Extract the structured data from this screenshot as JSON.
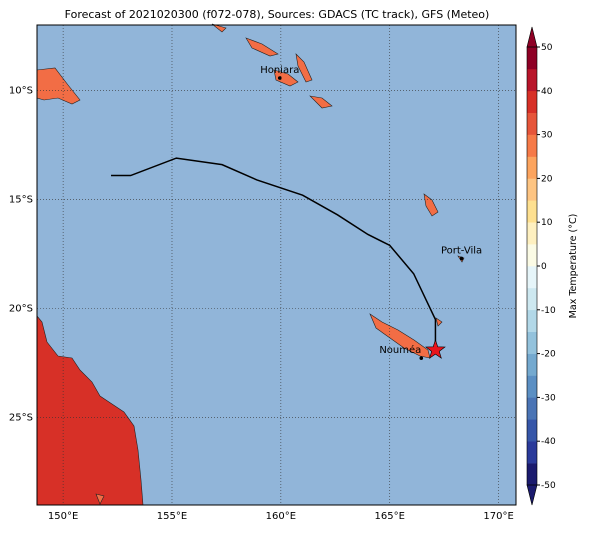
{
  "chart_data": {
    "type": "map",
    "title": "Forecast of 2021020300 (f072-078), Sources: GDACS (TC track), GFS (Meteo)",
    "xlim": [
      148.8,
      170.8
    ],
    "ylim": [
      -29,
      -7
    ],
    "xticks": [
      {
        "value": 150,
        "label": "150°E"
      },
      {
        "value": 155,
        "label": "155°E"
      },
      {
        "value": 160,
        "label": "160°E"
      },
      {
        "value": 165,
        "label": "165°E"
      },
      {
        "value": 170,
        "label": "170°E"
      }
    ],
    "yticks": [
      {
        "value": -10,
        "label": "10°S"
      },
      {
        "value": -15,
        "label": "15°S"
      },
      {
        "value": -20,
        "label": "20°S"
      },
      {
        "value": -25,
        "label": "25°S"
      }
    ],
    "grid": true,
    "track": {
      "color": "#000000",
      "x": [
        152.2,
        153.1,
        155.2,
        157.3,
        158.9,
        161.0,
        162.6,
        164.0,
        165.0,
        166.1,
        167.1,
        167.1
      ],
      "y": [
        -13.9,
        -13.9,
        -13.1,
        -13.4,
        -14.1,
        -14.8,
        -15.7,
        -16.6,
        -17.1,
        -18.4,
        -20.5,
        -21.9
      ]
    },
    "storm": {
      "x": 167.1,
      "y": -21.9,
      "color": "#e8141c"
    },
    "cities": [
      {
        "name": "Honiara",
        "x": 159.95,
        "y": -9.43
      },
      {
        "name": "Port-Vila",
        "x": 168.3,
        "y": -17.7
      },
      {
        "name": "Nouméa",
        "x": 166.45,
        "y": -22.27
      }
    ],
    "colorbar": {
      "label": "Max Temperature (°C)",
      "lim": [
        -50,
        50
      ],
      "ticks": [
        -50,
        -40,
        -30,
        -20,
        -10,
        0,
        10,
        20,
        30,
        40,
        50
      ],
      "colors": [
        "#1b1b6e",
        "#2a3a9a",
        "#3656a8",
        "#4a74b5",
        "#5b8fc3",
        "#74a9cf",
        "#93c2dc",
        "#b2d8e8",
        "#cde8f0",
        "#e6f5f9",
        "#fbfbe5",
        "#fef0c0",
        "#fee090",
        "#fdc482",
        "#fca45e",
        "#f67a48",
        "#e6553a",
        "#d73027",
        "#b8152a",
        "#8e0025"
      ]
    }
  }
}
